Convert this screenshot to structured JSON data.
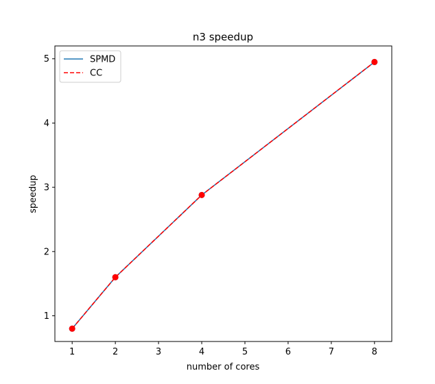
{
  "chart_data": {
    "type": "line",
    "title": "n3 speedup",
    "xlabel": "number of cores",
    "ylabel": "speedup",
    "xlim": [
      0.6,
      8.4
    ],
    "ylim": [
      0.6,
      5.2
    ],
    "xticks": [
      1,
      2,
      3,
      4,
      5,
      6,
      7,
      8
    ],
    "yticks": [
      1,
      2,
      3,
      4,
      5
    ],
    "legend_position": "top-left",
    "x": [
      1,
      2,
      4,
      8
    ],
    "series": [
      {
        "name": "SPMD",
        "values": [
          0.8,
          1.6,
          2.88,
          4.95
        ],
        "color": "#1f77b4",
        "style": "solid",
        "markers": true
      },
      {
        "name": "CC",
        "values": [
          0.8,
          1.6,
          2.88,
          4.95
        ],
        "color": "#ff0000",
        "style": "dashed",
        "markers": true
      }
    ]
  }
}
